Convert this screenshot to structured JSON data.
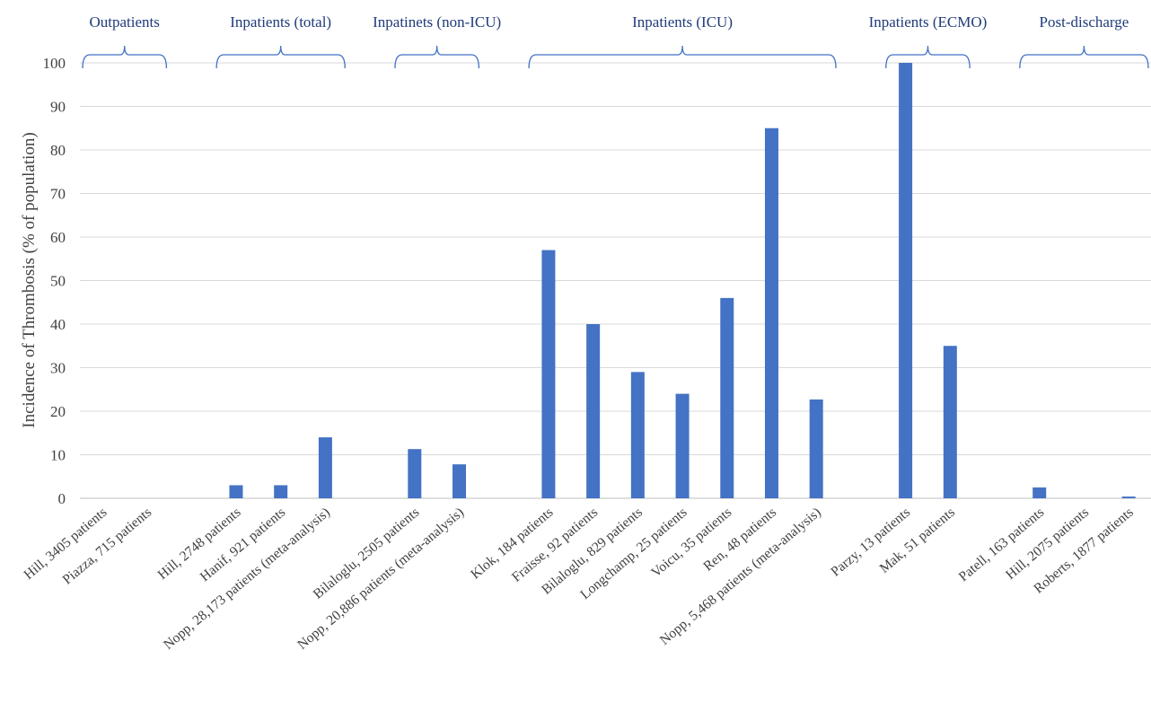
{
  "chart_data": {
    "type": "bar",
    "title": "",
    "xlabel": "",
    "ylabel": "Incidence of Thrombosis (% of population)",
    "ylim": [
      0,
      100
    ],
    "yticks": [
      "0",
      "10",
      "20",
      "30",
      "40",
      "50",
      "60",
      "70",
      "80",
      "90",
      "100"
    ],
    "grid": true,
    "bar_color": "#4472c4",
    "group_label_color": "#1f3b7a",
    "categories": [
      "Hill, 3405 patients",
      "Piazza, 715 patients",
      "",
      "Hill, 2748 patients",
      "Hanif, 921 patients",
      "Nopp, 28,173 patients (meta-analysis)",
      "",
      "Bilaloglu, 2505 patients",
      "Nopp, 20,886 patients (meta-analysis)",
      "",
      "Klok, 184 patients",
      "Fraisse, 92 patients",
      "Bilaloglu, 829 patients",
      "Longchamp, 25 patients",
      "Voicu, 35 patients",
      "Ren, 48 patients",
      "Nopp, 5,468 patients (meta-analysis)",
      "",
      "Parzy, 13 patients",
      "Mak, 51 patients",
      "",
      "Patell, 163 patients",
      "Hill, 2075 patients",
      "Roberts, 1877 patients"
    ],
    "values": [
      0,
      0,
      null,
      3,
      3,
      14,
      null,
      11.3,
      7.8,
      null,
      57,
      40,
      29,
      24,
      46,
      85,
      22.7,
      null,
      100,
      35,
      null,
      2.5,
      0,
      0.4
    ],
    "groups": [
      {
        "label": "Outpatients",
        "start": 0,
        "end": 1
      },
      {
        "label": "Inpatients (total)",
        "start": 3,
        "end": 5
      },
      {
        "label": "Inpatinets (non-ICU)",
        "start": 7,
        "end": 8
      },
      {
        "label": "Inpatients (ICU)",
        "start": 10,
        "end": 16
      },
      {
        "label": "Inpatients (ECMO)",
        "start": 18,
        "end": 19
      },
      {
        "label": "Post-discharge",
        "start": 21,
        "end": 23
      }
    ]
  }
}
